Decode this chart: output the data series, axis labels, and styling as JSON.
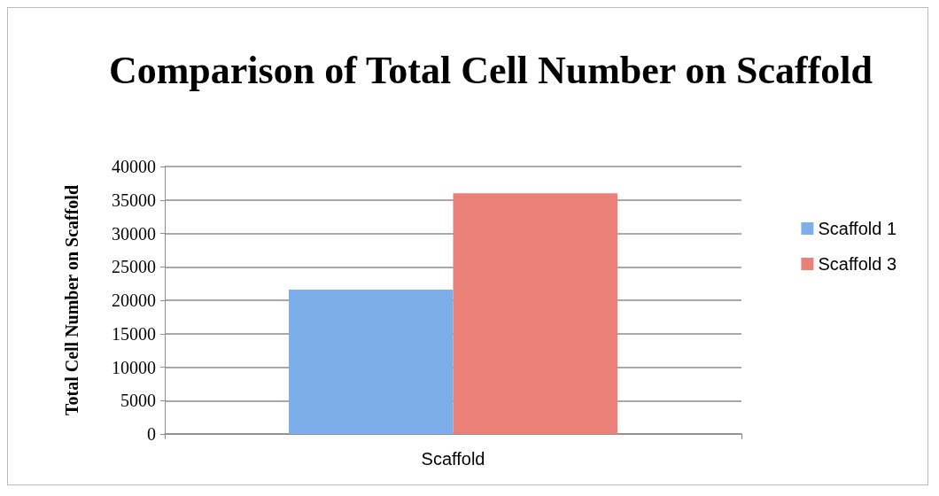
{
  "chart_data": {
    "type": "bar",
    "title": "Comparison of Total Cell Number on Scaffold",
    "ylabel": "Total Cell Number on Scaffold",
    "categories": [
      "Scaffold"
    ],
    "series": [
      {
        "name": "Scaffold 1",
        "color": "#7eaeea",
        "values": [
          21600
        ]
      },
      {
        "name": "Scaffold 3",
        "color": "#ea8078",
        "values": [
          36000
        ]
      }
    ],
    "ylim": [
      0,
      40000
    ],
    "yticks": [
      0,
      5000,
      10000,
      15000,
      20000,
      25000,
      30000,
      35000,
      40000
    ],
    "grid": "y",
    "legend": "right"
  }
}
